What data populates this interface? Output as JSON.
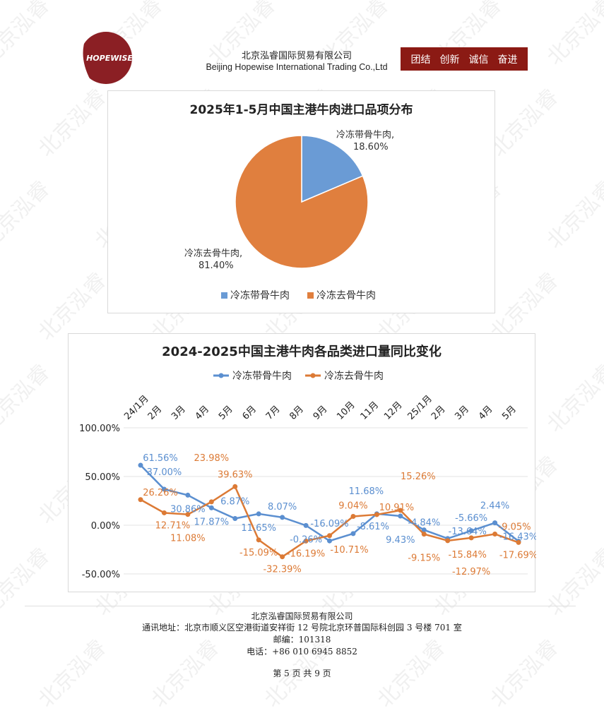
{
  "header": {
    "logo_text": "HOPEWISE",
    "company_cn": "北京泓睿国际贸易有限公司",
    "company_en": "Beijing Hopewise International Trading Co.,Ltd",
    "slogans": [
      "团结",
      "创新",
      "诚信",
      "奋进"
    ]
  },
  "watermark": "北京泓睿",
  "chart_data": [
    {
      "type": "pie",
      "title": "2025年1-5月中国主港牛肉进口品项分布",
      "slices": [
        {
          "name": "冷冻带骨牛肉",
          "value": 18.6,
          "label": "18.60%",
          "color": "#6a9bd5"
        },
        {
          "name": "冷冻去骨牛肉",
          "value": 81.4,
          "label": "81.40%",
          "color": "#e07f3e"
        }
      ],
      "legend": "bottom"
    },
    {
      "type": "line",
      "title": "2024-2025中国主港牛肉各品类进口量同比变化",
      "categories": [
        "24/1月",
        "2月",
        "3月",
        "4月",
        "5月",
        "6月",
        "7月",
        "8月",
        "9月",
        "10月",
        "11月",
        "12月",
        "25/1月",
        "2月",
        "3月",
        "4月",
        "5月"
      ],
      "yticks": [
        "100.00%",
        "50.00%",
        "0.00%",
        "-50.00%"
      ],
      "ylim": [
        -50,
        100
      ],
      "grid": true,
      "legend": "top",
      "series": [
        {
          "name": "冷冻带骨牛肉",
          "color": "#5b8fd0",
          "values": [
            61.56,
            37.0,
            30.86,
            17.87,
            6.87,
            11.65,
            8.07,
            -0.26,
            -16.09,
            -8.61,
            11.68,
            9.43,
            -4.84,
            -13.64,
            -5.66,
            2.44,
            -16.43
          ]
        },
        {
          "name": "冷冻去骨牛肉",
          "color": "#dc7a35",
          "values": [
            26.26,
            12.71,
            11.08,
            23.98,
            39.63,
            -15.09,
            -32.39,
            -16.19,
            -10.71,
            9.04,
            10.91,
            15.26,
            -9.15,
            -15.84,
            -12.97,
            -9.05,
            -17.69
          ]
        }
      ]
    }
  ],
  "footer": {
    "company": "北京泓睿国际贸易有限公司",
    "address": "通讯地址：北京市顺义区空港街道安祥街 12 号院北京环普国际科创园 3 号楼 701 室",
    "postcode": "邮编：101318",
    "phone": "电话：+86 010 6945 8852",
    "page": "第 5 页 共 9 页"
  }
}
